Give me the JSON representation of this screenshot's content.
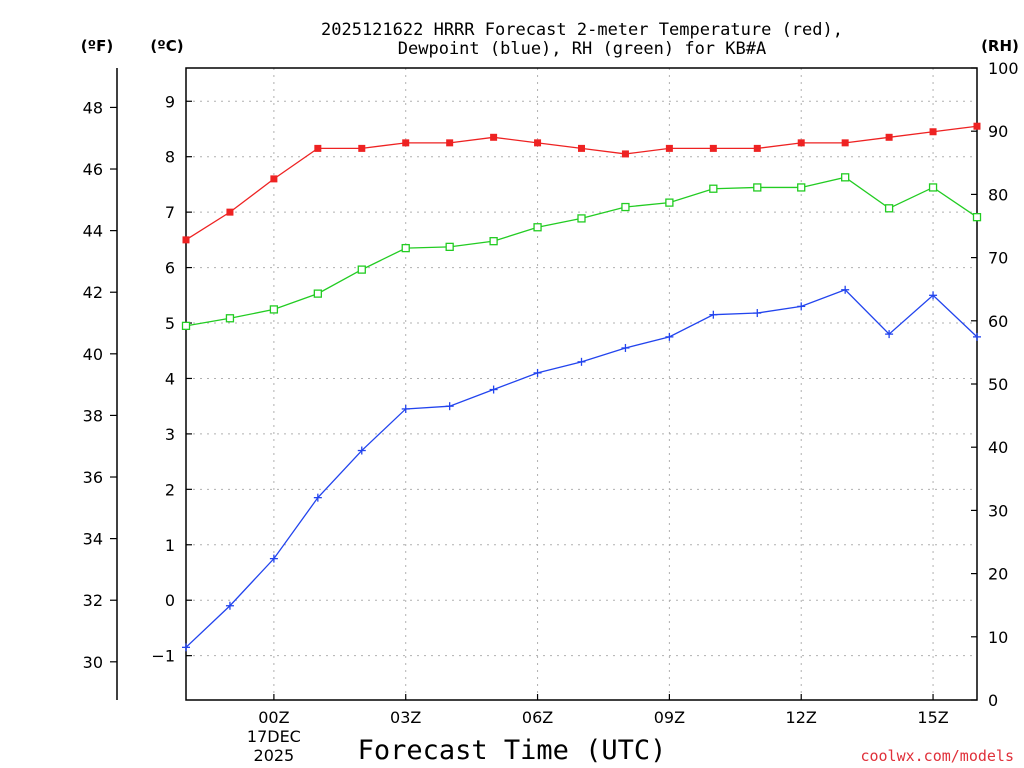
{
  "chart_data": {
    "type": "line",
    "title_lines": [
      "2025121622 HRRR Forecast 2-meter Temperature (red),",
      "Dewpoint (blue), RH (green) for KB#A"
    ],
    "units": {
      "fahrenheit": "(ºF)",
      "celsius": "(ºC)",
      "rh": "(RH)"
    },
    "xlabel": "Forecast Time (UTC)",
    "credit": "coolwx.com/models",
    "x_hours": [
      -2,
      -1,
      0,
      1,
      2,
      3,
      4,
      5,
      6,
      7,
      8,
      9,
      10,
      11,
      12,
      13,
      14,
      15,
      16
    ],
    "xlim": [
      -2,
      16
    ],
    "x_ticks": [
      {
        "hour": 0,
        "label": "00Z",
        "sub": [
          "17DEC",
          "2025"
        ]
      },
      {
        "hour": 3,
        "label": "03Z"
      },
      {
        "hour": 6,
        "label": "06Z"
      },
      {
        "hour": 9,
        "label": "09Z"
      },
      {
        "hour": 12,
        "label": "12Z"
      },
      {
        "hour": 15,
        "label": "15Z"
      }
    ],
    "celsius_axis": {
      "ylim": [
        -1.8,
        9.6
      ],
      "ticks": [
        "-1",
        "0",
        "1",
        "2",
        "3",
        "4",
        "5",
        "6",
        "7",
        "8",
        "9"
      ]
    },
    "fahrenheit_ticks": [
      "30",
      "32",
      "34",
      "36",
      "38",
      "40",
      "42",
      "44",
      "46",
      "48"
    ],
    "rh_axis": {
      "ylim": [
        0,
        100
      ],
      "ticks": [
        "0",
        "10",
        "20",
        "30",
        "40",
        "50",
        "60",
        "70",
        "80",
        "90",
        "100"
      ]
    },
    "series": [
      {
        "name": "2-meter Temperature",
        "axis": "celsius",
        "color": "#ee2222",
        "marker": "filled-square",
        "values": [
          6.5,
          7.0,
          7.6,
          8.15,
          8.15,
          8.25,
          8.25,
          8.35,
          8.25,
          8.15,
          8.05,
          8.15,
          8.15,
          8.15,
          8.25,
          8.25,
          8.35,
          8.45,
          8.55
        ]
      },
      {
        "name": "Dewpoint",
        "axis": "celsius",
        "color": "#2244ee",
        "marker": "plus",
        "values": [
          -0.85,
          -0.1,
          0.75,
          1.85,
          2.7,
          3.45,
          3.5,
          3.8,
          4.1,
          4.3,
          4.55,
          4.75,
          5.15,
          5.18,
          5.3,
          5.6,
          4.8,
          5.5,
          4.75
        ]
      },
      {
        "name": "RH",
        "axis": "rh",
        "color": "#22cc22",
        "marker": "open-square",
        "values": [
          59.2,
          60.4,
          61.8,
          64.3,
          68.1,
          71.5,
          71.7,
          72.6,
          74.8,
          76.2,
          78.0,
          78.7,
          80.9,
          81.1,
          81.1,
          82.7,
          77.8,
          81.1,
          76.4
        ]
      }
    ]
  }
}
